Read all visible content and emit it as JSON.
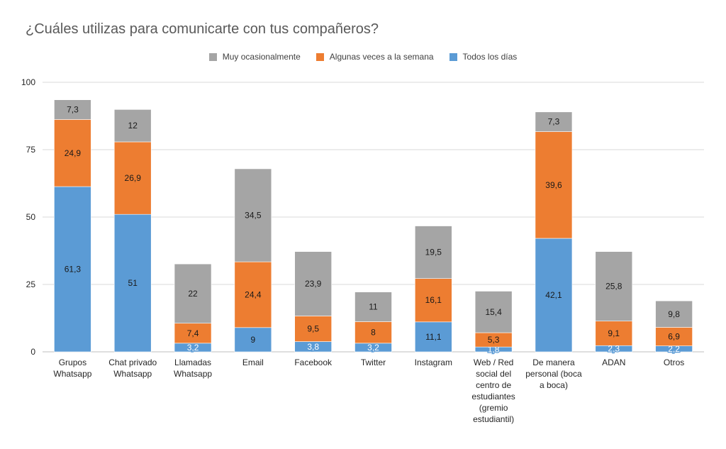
{
  "chart_data": {
    "type": "bar",
    "stacked": true,
    "title": "¿Cuáles utilizas para comunicarte con tus compañeros?",
    "xlabel": "",
    "ylabel": "",
    "ylim": [
      0,
      100
    ],
    "yticks": [
      "0",
      "25",
      "50",
      "75",
      "100"
    ],
    "grid": true,
    "legend_position": "top-center",
    "categories": [
      "Grupos Whatsapp",
      "Chat privado Whatsapp",
      "Llamadas Whatsapp",
      "Email",
      "Facebook",
      "Twitter",
      "Instagram",
      "Web / Red social del centro de estudiantes (gremio estudiantil)",
      "De manera personal (boca a boca)",
      "ADAN",
      "Otros"
    ],
    "series": [
      {
        "name": "Todos los días",
        "color": "#5b9bd5",
        "values": [
          61.3,
          51,
          3.2,
          9,
          3.8,
          3.2,
          11.1,
          1.8,
          42.1,
          2.3,
          2.2
        ],
        "labels": [
          "61,3",
          "51",
          "3,2",
          "9",
          "3,8",
          "3,2",
          "11,1",
          "1,8",
          "42,1",
          "2,3",
          "2,2"
        ]
      },
      {
        "name": "Algunas veces a la semana",
        "color": "#ed7d31",
        "values": [
          24.9,
          26.9,
          7.4,
          24.4,
          9.5,
          8,
          16.1,
          5.3,
          39.6,
          9.1,
          6.9
        ],
        "labels": [
          "24,9",
          "26,9",
          "7,4",
          "24,4",
          "9,5",
          "8",
          "16,1",
          "5,3",
          "39,6",
          "9,1",
          "6,9"
        ]
      },
      {
        "name": "Muy ocasionalmente",
        "color": "#a5a5a5",
        "values": [
          7.3,
          12,
          22,
          34.5,
          23.9,
          11,
          19.5,
          15.4,
          7.3,
          25.8,
          9.8
        ],
        "labels": [
          "7,3",
          "12",
          "22",
          "34,5",
          "23,9",
          "11",
          "19,5",
          "15,4",
          "7,3",
          "25,8",
          "9,8"
        ]
      }
    ]
  }
}
